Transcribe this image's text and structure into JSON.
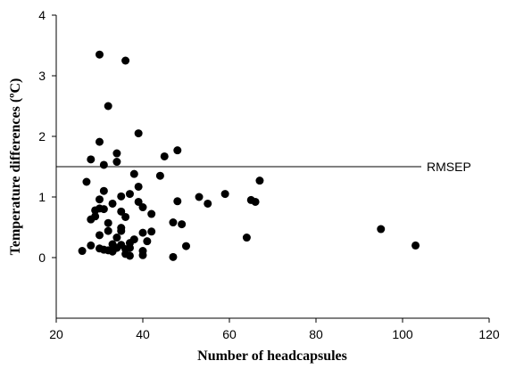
{
  "chart_data": {
    "type": "scatter",
    "title": "",
    "xlabel": "Number of headcapsules",
    "ylabel": "Temperature differences (ºC)",
    "xlim": [
      20,
      120
    ],
    "ylim": [
      -1,
      4
    ],
    "xticks": [
      20,
      40,
      60,
      80,
      100,
      120
    ],
    "xtick_labels": [
      "20",
      "40",
      "60",
      "80",
      "100",
      "120"
    ],
    "yticks": [
      0,
      1,
      2,
      3,
      4
    ],
    "ytick_labels": [
      "0",
      "1",
      "2",
      "3",
      "4"
    ],
    "grid": false,
    "reference_line": {
      "y": 1.5,
      "label": "RMSEP"
    },
    "series": [
      {
        "color": "#000000",
        "points": [
          [
            26,
            0.11
          ],
          [
            27,
            1.25
          ],
          [
            28,
            0.2
          ],
          [
            28,
            0.63
          ],
          [
            28,
            1.62
          ],
          [
            29,
            0.68
          ],
          [
            29,
            0.78
          ],
          [
            30,
            3.35
          ],
          [
            30,
            1.91
          ],
          [
            30,
            0.96
          ],
          [
            30,
            0.81
          ],
          [
            30,
            0.37
          ],
          [
            30,
            0.15
          ],
          [
            31,
            1.53
          ],
          [
            31,
            1.1
          ],
          [
            31,
            0.8
          ],
          [
            31,
            0.13
          ],
          [
            32,
            2.5
          ],
          [
            32,
            0.57
          ],
          [
            32,
            0.44
          ],
          [
            32,
            0.12
          ],
          [
            33,
            0.89
          ],
          [
            33,
            0.22
          ],
          [
            33,
            0.1
          ],
          [
            34,
            1.72
          ],
          [
            34,
            1.58
          ],
          [
            34,
            0.33
          ],
          [
            34,
            0.16
          ],
          [
            35,
            1.01
          ],
          [
            35,
            0.76
          ],
          [
            35,
            0.49
          ],
          [
            35,
            0.44
          ],
          [
            35,
            0.21
          ],
          [
            36,
            3.25
          ],
          [
            36,
            0.67
          ],
          [
            36,
            0.06
          ],
          [
            36,
            0.14
          ],
          [
            37,
            1.05
          ],
          [
            37,
            0.24
          ],
          [
            37,
            0.16
          ],
          [
            37,
            0.03
          ],
          [
            38,
            1.38
          ],
          [
            38,
            0.3
          ],
          [
            39,
            2.05
          ],
          [
            39,
            1.17
          ],
          [
            39,
            0.92
          ],
          [
            40,
            0.83
          ],
          [
            40,
            0.41
          ],
          [
            40,
            0.11
          ],
          [
            40,
            0.04
          ],
          [
            41,
            0.27
          ],
          [
            42,
            0.72
          ],
          [
            42,
            0.43
          ],
          [
            44,
            1.35
          ],
          [
            45,
            1.67
          ],
          [
            47,
            0.01
          ],
          [
            47,
            0.58
          ],
          [
            48,
            1.77
          ],
          [
            48,
            0.93
          ],
          [
            49,
            0.55
          ],
          [
            50,
            0.19
          ],
          [
            53,
            1.0
          ],
          [
            55,
            0.89
          ],
          [
            59,
            1.05
          ],
          [
            64,
            0.33
          ],
          [
            65,
            0.95
          ],
          [
            66,
            0.92
          ],
          [
            67,
            1.27
          ],
          [
            95,
            0.47
          ],
          [
            103,
            0.2
          ]
        ]
      }
    ]
  }
}
